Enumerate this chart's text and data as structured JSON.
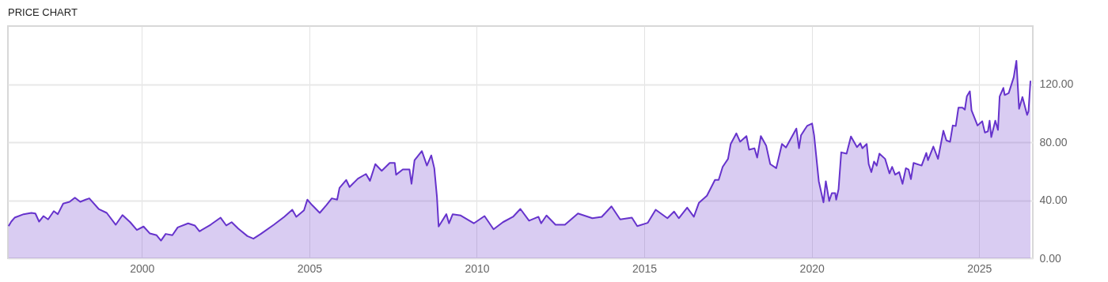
{
  "chart_data": {
    "type": "area",
    "title": "PRICE CHART",
    "x": [
      1996.02,
      1996.1,
      1996.2,
      1996.47,
      1996.7,
      1996.82,
      1996.93,
      1997.06,
      1997.2,
      1997.37,
      1997.49,
      1997.65,
      1997.84,
      1998.0,
      1998.16,
      1998.32,
      1998.43,
      1998.71,
      1998.95,
      1999.22,
      1999.42,
      1999.65,
      1999.85,
      2000.05,
      2000.24,
      2000.44,
      2000.57,
      2000.71,
      2000.91,
      2001.07,
      2001.38,
      2001.58,
      2001.72,
      2002.05,
      2002.35,
      2002.52,
      2002.68,
      2002.88,
      2003.15,
      2003.33,
      2003.55,
      2003.94,
      2004.25,
      2004.49,
      2004.61,
      2004.84,
      2004.94,
      2005.08,
      2005.31,
      2005.51,
      2005.67,
      2005.83,
      2005.9,
      2006.1,
      2006.2,
      2006.45,
      2006.69,
      2006.81,
      2006.97,
      2007.16,
      2007.4,
      2007.55,
      2007.59,
      2007.79,
      2007.99,
      2008.05,
      2008.14,
      2008.36,
      2008.51,
      2008.64,
      2008.73,
      2008.81,
      2008.86,
      2009.09,
      2009.17,
      2009.28,
      2009.52,
      2009.91,
      2010.23,
      2010.5,
      2010.78,
      2011.08,
      2011.3,
      2011.56,
      2011.84,
      2011.92,
      2012.08,
      2012.35,
      2012.63,
      2013.02,
      2013.45,
      2013.73,
      2014.02,
      2014.28,
      2014.63,
      2014.79,
      2015.1,
      2015.34,
      2015.69,
      2015.89,
      2016.03,
      2016.28,
      2016.48,
      2016.63,
      2016.87,
      2017.11,
      2017.22,
      2017.34,
      2017.5,
      2017.58,
      2017.75,
      2017.86,
      2018.05,
      2018.13,
      2018.29,
      2018.37,
      2018.48,
      2018.64,
      2018.76,
      2018.94,
      2019.11,
      2019.23,
      2019.54,
      2019.62,
      2019.68,
      2019.86,
      2020.01,
      2020.07,
      2020.21,
      2020.35,
      2020.42,
      2020.52,
      2020.6,
      2020.7,
      2020.73,
      2020.8,
      2020.88,
      2021.04,
      2021.17,
      2021.35,
      2021.45,
      2021.51,
      2021.64,
      2021.7,
      2021.78,
      2021.86,
      2021.94,
      2022.02,
      2022.19,
      2022.32,
      2022.4,
      2022.49,
      2022.61,
      2022.71,
      2022.81,
      2022.89,
      2022.96,
      2023.04,
      2023.28,
      2023.42,
      2023.47,
      2023.63,
      2023.77,
      2023.93,
      2024.02,
      2024.13,
      2024.21,
      2024.3,
      2024.38,
      2024.5,
      2024.57,
      2024.63,
      2024.72,
      2024.77,
      2024.95,
      2025.09,
      2025.17,
      2025.26,
      2025.31,
      2025.36,
      2025.48,
      2025.56,
      2025.61,
      2025.72,
      2025.76,
      2025.88,
      2026.03,
      2026.11,
      2026.19,
      2026.29,
      2026.43,
      2026.47,
      2026.53
    ],
    "series": [
      {
        "color": "#6633cc",
        "values": [
          22.2,
          25.3,
          28.0,
          30.4,
          31.3,
          30.9,
          25.3,
          29.1,
          26.8,
          32.5,
          30.4,
          37.7,
          38.9,
          41.8,
          38.9,
          40.4,
          41.3,
          34.0,
          31.3,
          23.1,
          29.8,
          24.9,
          19.5,
          21.9,
          17.1,
          15.9,
          12.2,
          16.8,
          15.9,
          21.3,
          24.1,
          22.6,
          18.6,
          23.1,
          28.0,
          22.6,
          24.9,
          20.4,
          15.3,
          13.5,
          16.8,
          23.1,
          28.6,
          33.5,
          28.6,
          33.1,
          40.4,
          36.7,
          31.3,
          36.7,
          41.3,
          40.4,
          48.5,
          54.0,
          49.1,
          54.9,
          58.1,
          53.4,
          64.9,
          60.3,
          65.7,
          65.7,
          57.6,
          61.2,
          61.2,
          51.3,
          67.6,
          73.9,
          63.9,
          70.9,
          62.1,
          42.2,
          21.9,
          30.4,
          24.1,
          30.4,
          29.5,
          24.1,
          29.1,
          20.0,
          24.9,
          28.6,
          34.0,
          25.9,
          28.6,
          24.1,
          29.5,
          23.1,
          23.1,
          30.9,
          27.6,
          28.6,
          35.8,
          26.8,
          28.0,
          22.2,
          24.4,
          33.5,
          27.6,
          32.2,
          27.6,
          34.9,
          28.6,
          38.2,
          43.1,
          54.0,
          54.0,
          63.0,
          68.5,
          78.8,
          86.1,
          80.3,
          84.2,
          74.8,
          75.8,
          69.4,
          84.2,
          77.5,
          64.9,
          62.1,
          78.8,
          76.3,
          89.4,
          75.8,
          84.8,
          91.2,
          92.9,
          84.8,
          53.1,
          38.5,
          53.1,
          39.5,
          44.9,
          44.9,
          40.4,
          47.6,
          73.0,
          72.1,
          83.9,
          76.6,
          79.3,
          75.8,
          78.8,
          64.9,
          59.4,
          66.7,
          63.9,
          72.1,
          68.5,
          58.5,
          63.0,
          57.6,
          59.4,
          51.3,
          62.1,
          61.2,
          54.5,
          65.7,
          63.9,
          72.6,
          67.6,
          77.0,
          68.5,
          87.9,
          81.2,
          80.3,
          91.5,
          91.2,
          103.8,
          103.8,
          102.4,
          111.5,
          115.1,
          102.0,
          91.5,
          94.4,
          86.6,
          87.5,
          94.8,
          83.5,
          94.8,
          88.4,
          111.5,
          117.4,
          112.5,
          113.8,
          124.7,
          136.1,
          103.0,
          111.1,
          98.8,
          101.1,
          122.3
        ]
      }
    ],
    "xlim": [
      1996,
      2026.6
    ],
    "xticks": [
      2000,
      2005,
      2010,
      2015,
      2020,
      2025
    ],
    "ylim": [
      0,
      160
    ],
    "yticks": [
      {
        "value": 0,
        "label": "0.00"
      },
      {
        "value": 40,
        "label": "40.00"
      },
      {
        "value": 80,
        "label": "80.00"
      },
      {
        "value": 120,
        "label": "120.00"
      }
    ],
    "grid": true
  }
}
